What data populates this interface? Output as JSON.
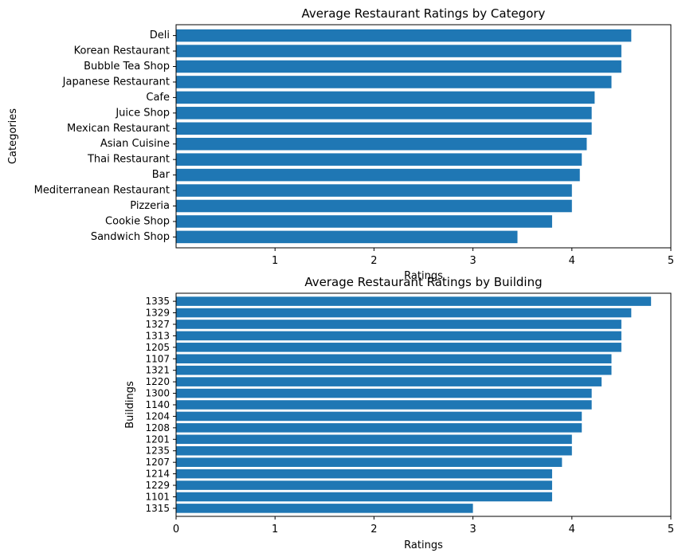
{
  "chart_data": [
    {
      "type": "bar",
      "orientation": "horizontal",
      "title": "Average Restaurant Ratings by Category",
      "xlabel": "Ratings",
      "ylabel": "Categories",
      "xlim": [
        0,
        5
      ],
      "xticks": [
        1,
        2,
        3,
        4,
        5
      ],
      "color": "#1f77b4",
      "grid": false,
      "categories": [
        "Deli",
        "Korean Restaurant",
        "Bubble Tea Shop",
        "Japanese Restaurant",
        "Cafe",
        "Juice Shop",
        "Mexican Restaurant",
        "Asian Cuisine ",
        "Thai Restaurant",
        "Bar",
        "Mediterranean Restaurant",
        "Pizzeria",
        "Cookie Shop",
        "Sandwich Shop"
      ],
      "values": [
        4.6,
        4.5,
        4.5,
        4.4,
        4.23,
        4.2,
        4.2,
        4.15,
        4.1,
        4.08,
        4.0,
        4.0,
        3.8,
        3.45
      ]
    },
    {
      "type": "bar",
      "orientation": "horizontal",
      "title": "Average Restaurant Ratings by Building",
      "xlabel": "Ratings",
      "ylabel": "Buildings",
      "xlim": [
        0,
        5
      ],
      "xticks": [
        0,
        1,
        2,
        3,
        4,
        5
      ],
      "color": "#1f77b4",
      "grid": false,
      "categories": [
        "1335",
        "1329",
        "1327",
        "1313",
        "1205",
        "1107",
        "1321",
        "1220",
        "1300",
        "1140",
        "1204",
        "1208",
        "1201",
        "1235",
        "1207",
        "1214",
        "1229",
        "1101",
        "1315"
      ],
      "values": [
        4.8,
        4.6,
        4.5,
        4.5,
        4.5,
        4.4,
        4.4,
        4.3,
        4.2,
        4.2,
        4.1,
        4.1,
        4.0,
        4.0,
        3.9,
        3.8,
        3.8,
        3.8,
        3.0
      ]
    }
  ]
}
